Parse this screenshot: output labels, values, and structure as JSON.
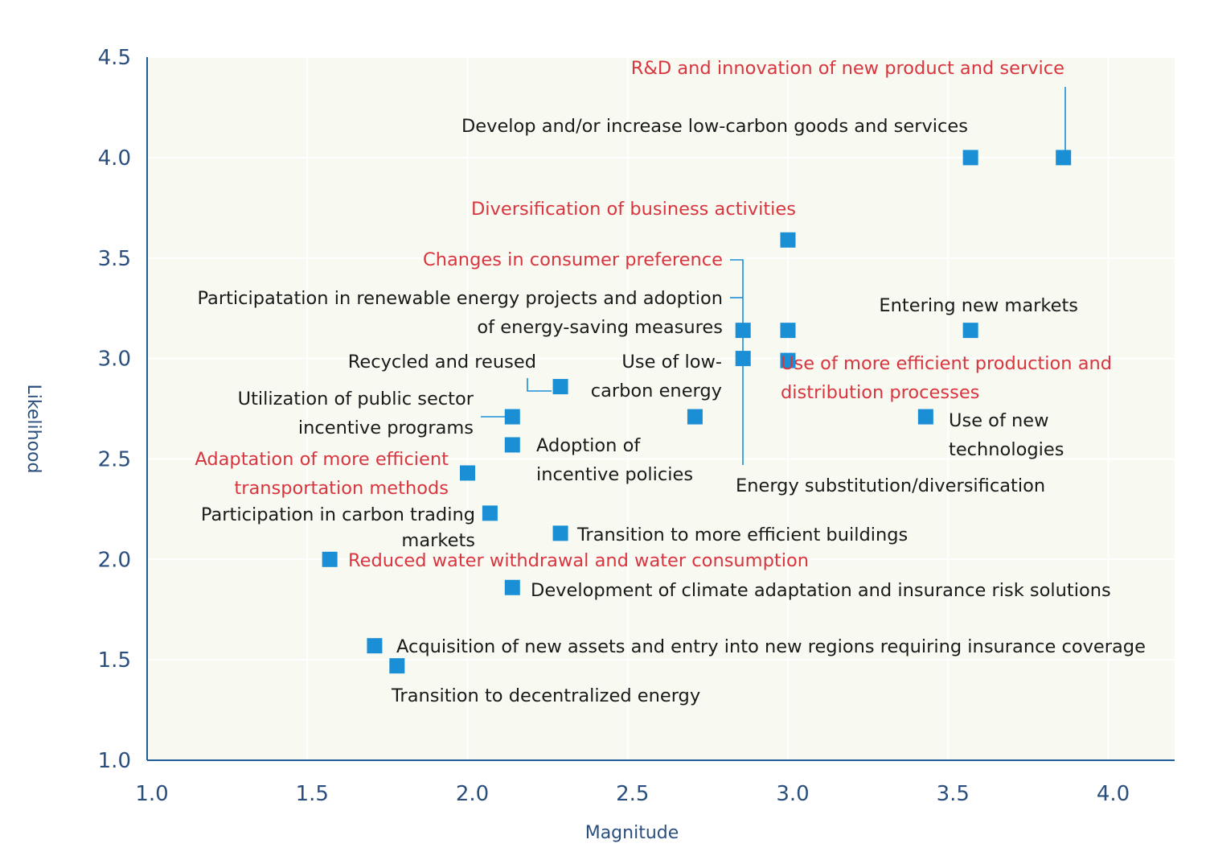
{
  "chart_data": {
    "type": "scatter",
    "xlabel": "Magnitude",
    "ylabel": "Likelihood",
    "xlim": [
      1.0,
      4.2
    ],
    "ylim": [
      1.0,
      4.5
    ],
    "xticks": [
      "1.0",
      "1.5",
      "2.0",
      "2.5",
      "3.0",
      "3.5",
      "4.0"
    ],
    "yticks": [
      "1.0",
      "1.5",
      "2.0",
      "2.5",
      "3.0",
      "3.5",
      "4.0",
      "4.5"
    ],
    "grid": true,
    "legend": "none",
    "colors": {
      "marker": "#1b8fd6",
      "plot_bg": "#f8f9f1",
      "grid": "#ffffff",
      "axis": "#1f5c9a",
      "label_black": "#1a1a1a",
      "label_red": "#d9353f",
      "leader": "#1b8fd6"
    },
    "points": [
      {
        "x": 3.86,
        "y": 4.0,
        "label": "R&D and innovation of new product and service",
        "highlight": true
      },
      {
        "x": 3.57,
        "y": 4.0,
        "label": "Develop and/or increase low-carbon goods and services",
        "highlight": false
      },
      {
        "x": 3.0,
        "y": 3.59,
        "label": "Diversification of business activities",
        "highlight": true
      },
      {
        "x": 2.86,
        "y": 3.14,
        "label": "Changes in consumer preference",
        "highlight": true
      },
      {
        "x": 3.0,
        "y": 3.14,
        "label": "Participatation in renewable energy projects and adoption of energy-saving measures",
        "highlight": false
      },
      {
        "x": 3.57,
        "y": 3.14,
        "label": "Entering new markets",
        "highlight": false
      },
      {
        "x": 2.86,
        "y": 3.0,
        "label": "Energy substitution/diversification",
        "highlight": false
      },
      {
        "x": 2.29,
        "y": 2.86,
        "label": "Recycled and reused",
        "highlight": false
      },
      {
        "x": 2.14,
        "y": 2.71,
        "label": "Utilization of public sector incentive programs",
        "highlight": false
      },
      {
        "x": 2.71,
        "y": 2.71,
        "label": "Use of low-carbon energy",
        "highlight": false
      },
      {
        "x": 3.43,
        "y": 2.71,
        "label": "Use of new technologies",
        "highlight": false
      },
      {
        "x": 2.14,
        "y": 2.57,
        "label": "Adoption of incentive policies",
        "highlight": false
      },
      {
        "x": 2.0,
        "y": 2.43,
        "label": "Adaptation of more efficient transportation methods",
        "highlight": true
      },
      {
        "x": 2.07,
        "y": 2.23,
        "label": "Participation in carbon trading markets",
        "highlight": false
      },
      {
        "x": 2.29,
        "y": 2.13,
        "label": "Transition to more efficient buildings",
        "highlight": false
      },
      {
        "x": 1.57,
        "y": 2.0,
        "label": "Reduced water withdrawal and water consumption",
        "highlight": true
      },
      {
        "x": 2.14,
        "y": 1.86,
        "label": "Development of climate adaptation and insurance risk solutions",
        "highlight": false
      },
      {
        "x": 1.71,
        "y": 1.57,
        "label": "Acquisition of new assets and entry into new regions requiring insurance coverage",
        "highlight": false
      },
      {
        "x": 1.78,
        "y": 1.47,
        "label": "Transition to decentralized energy",
        "highlight": false
      },
      {
        "x": 3.0,
        "y": 2.99,
        "label": "Use of more efficient production and distribution processes",
        "highlight": true
      }
    ]
  }
}
